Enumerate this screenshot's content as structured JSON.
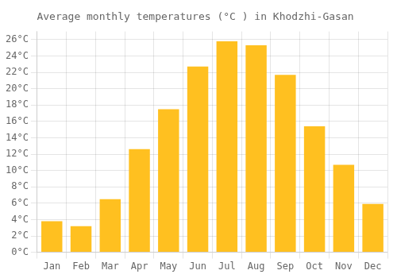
{
  "chart_data": {
    "type": "bar",
    "title": "Average monthly temperatures (°C ) in Khodzhi-Gasan",
    "categories": [
      "Jan",
      "Feb",
      "Mar",
      "Apr",
      "May",
      "Jun",
      "Jul",
      "Aug",
      "Sep",
      "Oct",
      "Nov",
      "Dec"
    ],
    "values": [
      3.8,
      3.2,
      6.5,
      12.6,
      17.5,
      22.7,
      25.8,
      25.3,
      21.7,
      15.4,
      10.7,
      5.9
    ],
    "color": "#FFC020",
    "ylim": [
      0,
      27
    ],
    "yticks": [
      {
        "value": 0,
        "label": "0°C"
      },
      {
        "value": 2,
        "label": "2°C"
      },
      {
        "value": 4,
        "label": "4°C"
      },
      {
        "value": 6,
        "label": "6°C"
      },
      {
        "value": 8,
        "label": "8°C"
      },
      {
        "value": 10,
        "label": "10°C"
      },
      {
        "value": 12,
        "label": "12°C"
      },
      {
        "value": 14,
        "label": "14°C"
      },
      {
        "value": 16,
        "label": "16°C"
      },
      {
        "value": 18,
        "label": "18°C"
      },
      {
        "value": 20,
        "label": "20°C"
      },
      {
        "value": 22,
        "label": "22°C"
      },
      {
        "value": 24,
        "label": "24°C"
      },
      {
        "value": 26,
        "label": "26°C"
      }
    ],
    "grid": true
  }
}
